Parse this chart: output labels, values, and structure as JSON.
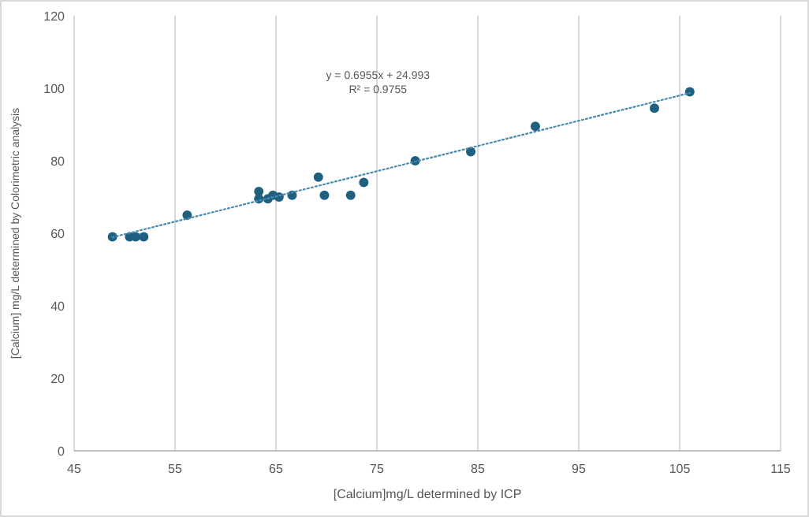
{
  "chart_data": {
    "type": "scatter",
    "xlabel": "[Calcium]mg/L determined by ICP",
    "ylabel": "[Calcium] mg/L determined by Colorimetric analysis",
    "xlim": [
      45,
      115
    ],
    "xticks": [
      45,
      55,
      65,
      75,
      85,
      95,
      105,
      115
    ],
    "ylim": [
      0,
      120
    ],
    "yticks": [
      0,
      20,
      40,
      60,
      80,
      100,
      120
    ],
    "grid": "x",
    "series": [
      {
        "marker": "circle",
        "color": "#1f5f7f",
        "x": [
          48.8,
          50.5,
          51.1,
          51.9,
          56.2,
          63.3,
          63.3,
          64.2,
          64.7,
          65.3,
          66.6,
          69.2,
          69.8,
          72.4,
          73.7,
          78.8,
          84.3,
          90.7,
          102.5,
          106
        ],
        "values": [
          59,
          59,
          59,
          59,
          65,
          71.5,
          69.5,
          69.5,
          70.5,
          70,
          70.5,
          75.5,
          70.5,
          70.5,
          74,
          80,
          82.5,
          89.5,
          94.5,
          99
        ]
      },
      {
        "type": "line",
        "color": "#4a8ab0",
        "line_style": "dotted",
        "x": [
          48.8,
          106
        ],
        "values": [
          58.9,
          98.7
        ]
      }
    ],
    "annotations": [
      "y = 0.6955x + 24.993",
      "R² = 0.9755"
    ]
  }
}
